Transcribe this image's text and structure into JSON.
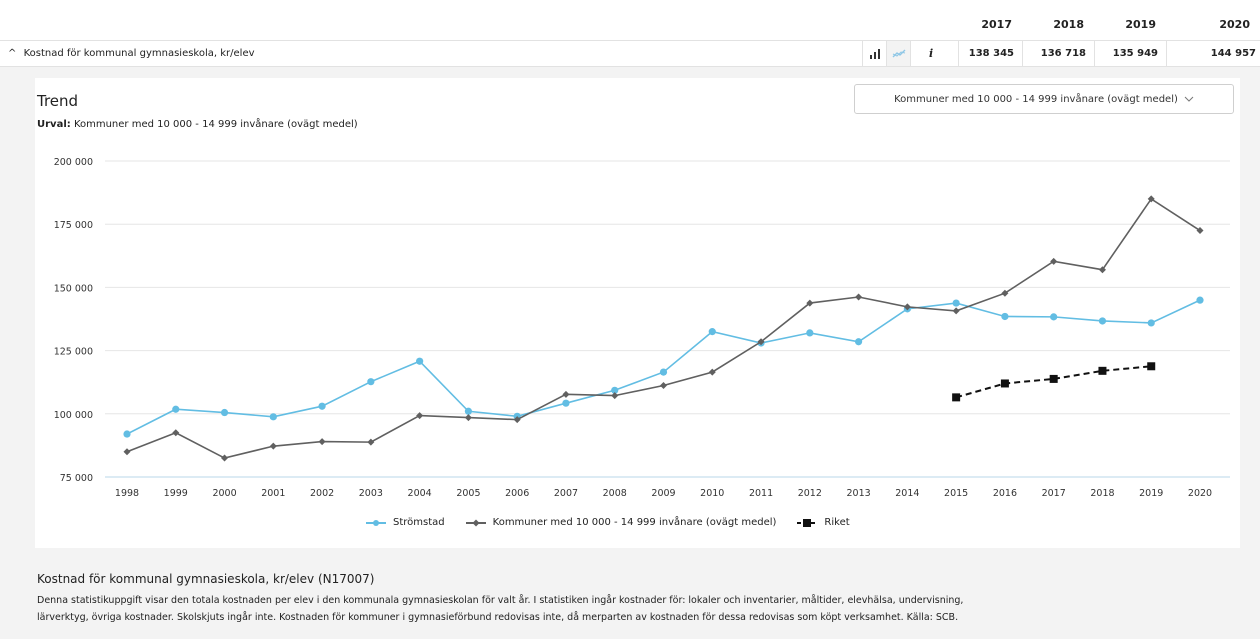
{
  "table": {
    "years": [
      "2017",
      "2018",
      "2019",
      "2020"
    ],
    "row_title": "Kostnad för kommunal gymnasieskola, kr/elev",
    "row_caret": "^",
    "values": [
      "138 345",
      "136 718",
      "135 949",
      "144 957"
    ],
    "icons": [
      "bar-chart-icon",
      "line-chart-icon",
      "info-icon"
    ]
  },
  "trend": {
    "title": "Trend",
    "urval_label": "Urval:",
    "urval_value": "Kommuner med 10 000 - 14 999 invånare (ovägt medel)",
    "dropdown_value": "Kommuner med 10 000 - 14 999 invånare (ovägt medel)"
  },
  "chart_data": {
    "type": "line",
    "x": [
      "1998",
      "1999",
      "2000",
      "2001",
      "2002",
      "2003",
      "2004",
      "2005",
      "2006",
      "2007",
      "2008",
      "2009",
      "2010",
      "2011",
      "2012",
      "2013",
      "2014",
      "2015",
      "2016",
      "2017",
      "2018",
      "2019",
      "2020"
    ],
    "ylim": [
      75000,
      200000
    ],
    "yticks": [
      75000,
      100000,
      125000,
      150000,
      175000,
      200000
    ],
    "ytick_labels": [
      "75 000",
      "100 000",
      "125 000",
      "150 000",
      "175 000",
      "200 000"
    ],
    "grid": true,
    "legend_position": "bottom",
    "series": [
      {
        "name": "Strömstad",
        "color": "#62bde3",
        "marker": "circle",
        "values": [
          92000,
          101800,
          100500,
          98800,
          103000,
          112700,
          120800,
          101000,
          99000,
          104200,
          109300,
          116500,
          132500,
          128000,
          132000,
          128500,
          141500,
          143800,
          138500,
          138345,
          136718,
          135949,
          144957
        ]
      },
      {
        "name": "Kommuner med 10 000 - 14 999 invånare (ovägt medel)",
        "color": "#606060",
        "marker": "diamond",
        "values": [
          85000,
          92500,
          82500,
          87200,
          89000,
          88800,
          99300,
          98500,
          97700,
          107700,
          107200,
          111200,
          116500,
          128500,
          143800,
          146200,
          142300,
          140700,
          147700,
          160300,
          157000,
          185000,
          172500
        ]
      },
      {
        "name": "Riket",
        "color": "#111111",
        "marker": "square",
        "dashed": true,
        "values": [
          null,
          null,
          null,
          null,
          null,
          null,
          null,
          null,
          null,
          null,
          null,
          null,
          null,
          null,
          null,
          null,
          null,
          106500,
          112000,
          113800,
          117000,
          118800,
          null
        ]
      }
    ]
  },
  "description": {
    "title": "Kostnad för kommunal gymnasieskola, kr/elev (N17007)",
    "line1": "Denna statistikuppgift visar den totala kostnaden per elev i den kommunala gymnasieskolan för valt år. I statistiken ingår kostnader för: lokaler och inventarier, måltider, elevhälsa, undervisning,",
    "line2": "lärverktyg, övriga kostnader. Skolskjuts ingår inte. Kostnaden för kommuner i gymnasieförbund redovisas inte, då merparten av kostnaden för dessa redovisas som köpt verksamhet. Källa: SCB."
  }
}
